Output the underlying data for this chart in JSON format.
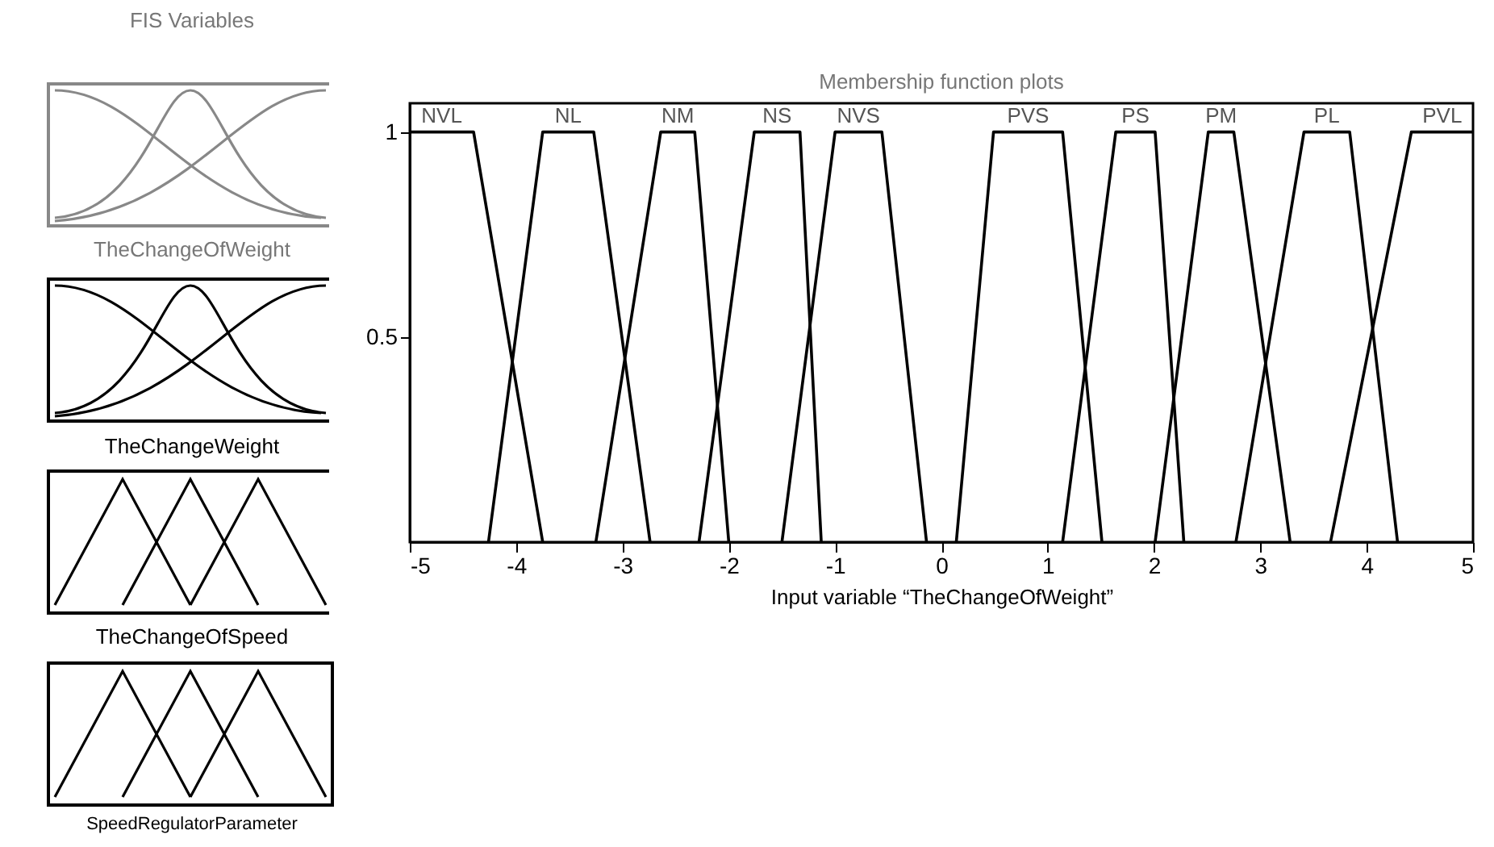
{
  "chart_data": {
    "type": "line",
    "title": "Membership function plots",
    "xlabel": "Input variable “TheChangeOfWeight”",
    "annotations": [
      "FIS Variables",
      "TheChangeOfWeight",
      "TheChangeWeight",
      "TheChangeOfSpeed",
      "SpeedRegulatorParameter"
    ],
    "xlim": [
      -5,
      5
    ],
    "xticks": [
      -5,
      -4,
      -3,
      -2,
      -1,
      0,
      1,
      2,
      3,
      4,
      5
    ],
    "ylim": [
      0,
      1.07
    ],
    "yticks": [
      0.5,
      1
    ],
    "series": [
      {
        "name": "NVL",
        "color": "#000000",
        "x": [
          -5,
          -4.4,
          -3.75
        ],
        "values": [
          1,
          1,
          0
        ]
      },
      {
        "name": "NL",
        "color": "#000000",
        "x": [
          -4.26,
          -3.75,
          -3.27,
          -2.74
        ],
        "values": [
          0,
          1,
          1,
          0
        ]
      },
      {
        "name": "NM",
        "color": "#000000",
        "x": [
          -3.25,
          -2.64,
          -2.32,
          -2.0
        ],
        "values": [
          0,
          1,
          1,
          0
        ]
      },
      {
        "name": "NS",
        "color": "#000000",
        "x": [
          -2.28,
          -1.76,
          -1.33,
          -1.13
        ],
        "values": [
          0,
          1,
          1,
          0
        ]
      },
      {
        "name": "NVS",
        "color": "#000000",
        "x": [
          -1.5,
          -1.0,
          -0.56,
          -0.14
        ],
        "values": [
          0,
          1,
          1,
          0
        ]
      },
      {
        "name": "PVS",
        "color": "#000000",
        "x": [
          0.14,
          0.49,
          1.14,
          1.51
        ],
        "values": [
          0,
          1,
          1,
          0
        ]
      },
      {
        "name": "PS",
        "color": "#000000",
        "x": [
          1.14,
          1.64,
          2.01,
          2.28
        ],
        "values": [
          0,
          1,
          1,
          0
        ]
      },
      {
        "name": "PM",
        "color": "#000000",
        "x": [
          2.01,
          2.51,
          2.75,
          3.28
        ],
        "values": [
          0,
          1,
          1,
          0
        ]
      },
      {
        "name": "PL",
        "color": "#000000",
        "x": [
          2.77,
          3.41,
          3.84,
          4.29
        ],
        "values": [
          0,
          1,
          1,
          0
        ]
      },
      {
        "name": "PVL",
        "color": "#000000",
        "x": [
          3.66,
          4.42,
          5
        ],
        "values": [
          0,
          1,
          1
        ]
      }
    ]
  }
}
